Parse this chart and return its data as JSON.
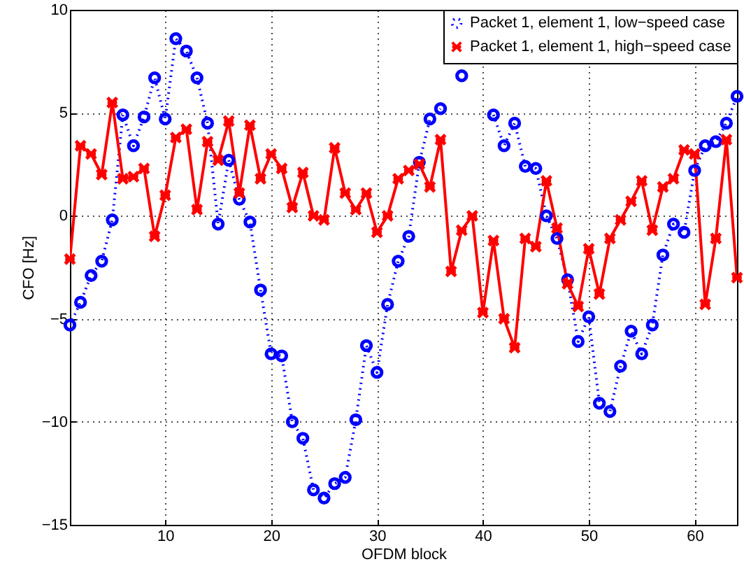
{
  "chart_data": {
    "type": "line",
    "xlabel": "OFDM block",
    "ylabel": "CFO [Hz]",
    "x": [
      1,
      2,
      3,
      4,
      5,
      6,
      7,
      8,
      9,
      10,
      11,
      12,
      13,
      14,
      15,
      16,
      17,
      18,
      19,
      20,
      21,
      22,
      23,
      24,
      25,
      26,
      27,
      28,
      29,
      30,
      31,
      32,
      33,
      34,
      35,
      36,
      37,
      38,
      39,
      40,
      41,
      42,
      43,
      44,
      45,
      46,
      47,
      48,
      49,
      50,
      51,
      52,
      53,
      54,
      55,
      56,
      57,
      58,
      59,
      60,
      61,
      62,
      63,
      64
    ],
    "series": [
      {
        "name": "Packet 1, element 1, low−speed case",
        "color": "#0000ff",
        "marker": "circle",
        "line_style": "dotted",
        "values": [
          -5.3,
          -4.2,
          -2.9,
          -2.2,
          -0.2,
          4.9,
          3.4,
          4.8,
          6.7,
          4.7,
          8.6,
          8.0,
          6.7,
          4.5,
          -0.4,
          2.7,
          0.8,
          -0.3,
          -3.6,
          -6.7,
          -6.8,
          -10.0,
          -10.8,
          -13.3,
          -13.7,
          -13.0,
          -12.7,
          -9.9,
          -6.3,
          -7.6,
          -4.3,
          -2.2,
          -1.0,
          2.6,
          4.7,
          5.2,
          null,
          6.8,
          null,
          null,
          4.9,
          3.4,
          4.5,
          2.4,
          2.3,
          0.0,
          -1.1,
          -3.1,
          -6.1,
          -4.9,
          -9.1,
          -9.5,
          -7.3,
          -5.6,
          -6.7,
          -5.3,
          -1.9,
          -0.4,
          -0.8,
          2.2,
          3.4,
          3.6,
          4.5,
          5.8
        ]
      },
      {
        "name": "Packet 1, element 1, high−speed case",
        "color": "#ff0000",
        "marker": "cross",
        "line_style": "solid",
        "values": [
          -2.1,
          3.4,
          3.0,
          2.0,
          5.5,
          1.8,
          1.9,
          2.3,
          -1.0,
          1.0,
          3.8,
          4.2,
          0.3,
          3.6,
          2.7,
          4.6,
          1.1,
          4.4,
          1.8,
          3.0,
          2.3,
          0.4,
          2.1,
          0.0,
          -0.2,
          3.3,
          1.1,
          0.3,
          1.1,
          -0.8,
          0.0,
          1.8,
          2.2,
          2.5,
          1.4,
          3.7,
          -2.7,
          -0.7,
          0.0,
          -4.7,
          -1.2,
          -5.0,
          -6.4,
          -1.1,
          -1.5,
          1.7,
          -0.6,
          -3.3,
          -4.4,
          -1.6,
          -3.8,
          -1.1,
          -0.2,
          0.7,
          1.7,
          -0.7,
          1.4,
          1.8,
          3.2,
          3.0,
          -4.3,
          -1.1,
          3.7,
          -3.0
        ]
      }
    ],
    "xlim": [
      1,
      64
    ],
    "xticks": [
      10,
      20,
      30,
      40,
      50,
      60
    ],
    "ylim": [
      -15,
      10
    ],
    "yticks": [
      -15,
      -10,
      -5,
      0,
      5,
      10
    ],
    "grid": true,
    "legend": "top right"
  }
}
